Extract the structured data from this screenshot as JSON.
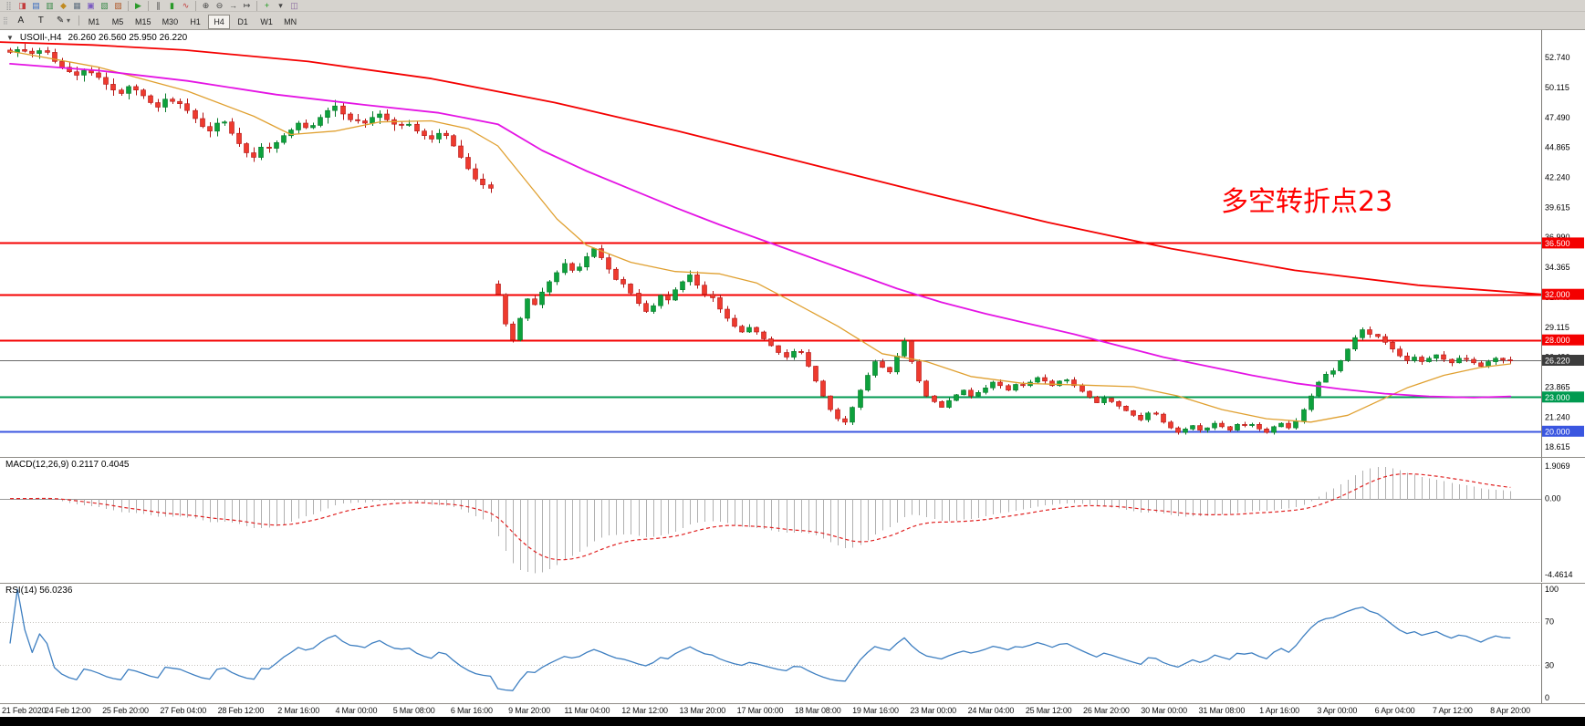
{
  "toolbar_row1": {
    "icons": [
      {
        "name": "drag-handle",
        "glyph": "⣿",
        "color": "#9a9a9a"
      },
      {
        "name": "new-order",
        "glyph": "◨",
        "color": "#c33b3b"
      },
      {
        "name": "market-watch",
        "glyph": "▤",
        "color": "#3a6cc0"
      },
      {
        "name": "data-window",
        "glyph": "▥",
        "color": "#3a8a4a"
      },
      {
        "name": "navigator",
        "glyph": "◆",
        "color": "#c08a20"
      },
      {
        "name": "terminal",
        "glyph": "▦",
        "color": "#607080"
      },
      {
        "name": "strategy-tester",
        "glyph": "▣",
        "color": "#7a5ac0"
      },
      {
        "name": "new-chart",
        "glyph": "▧",
        "color": "#3a8a4a"
      },
      {
        "name": "profiles",
        "glyph": "▨",
        "color": "#b05a2a"
      },
      {
        "name": "separator",
        "glyph": "",
        "color": ""
      },
      {
        "name": "autotrading",
        "glyph": "▶",
        "color": "#2a9a2a"
      },
      {
        "name": "separator",
        "glyph": "",
        "color": ""
      },
      {
        "name": "bar-chart",
        "glyph": "∥",
        "color": "#444444"
      },
      {
        "name": "candlestick-chart",
        "glyph": "▮",
        "color": "#2a9a2a"
      },
      {
        "name": "line-chart",
        "glyph": "∿",
        "color": "#c33b3b"
      },
      {
        "name": "separator",
        "glyph": "",
        "color": ""
      },
      {
        "name": "zoom-in",
        "glyph": "⊕",
        "color": "#444444"
      },
      {
        "name": "zoom-out",
        "glyph": "⊖",
        "color": "#444444"
      },
      {
        "name": "auto-scroll",
        "glyph": "→",
        "color": "#444444"
      },
      {
        "name": "chart-shift",
        "glyph": "↦",
        "color": "#444444"
      },
      {
        "name": "separator",
        "glyph": "",
        "color": ""
      },
      {
        "name": "indicators",
        "glyph": "+",
        "color": "#1a9a1a"
      },
      {
        "name": "periods-list",
        "glyph": "▾",
        "color": "#444444"
      },
      {
        "name": "templates",
        "glyph": "◫",
        "color": "#8a6aa0"
      }
    ]
  },
  "toolbar_row2": {
    "handle_glyph": "⣿",
    "text_tool": "A",
    "label_tool": "T",
    "draw_glyph": "✎",
    "arrow": "▾",
    "periods": [
      {
        "label": "M1",
        "active": false
      },
      {
        "label": "M5",
        "active": false
      },
      {
        "label": "M15",
        "active": false
      },
      {
        "label": "M30",
        "active": false
      },
      {
        "label": "H1",
        "active": false
      },
      {
        "label": "H4",
        "active": true
      },
      {
        "label": "D1",
        "active": false
      },
      {
        "label": "W1",
        "active": false
      },
      {
        "label": "MN",
        "active": false
      }
    ]
  },
  "chart_header": {
    "expander": "▼",
    "symbol_period": "USOIl-,H4",
    "ohlc": "26.260 26.560 25.950 26.220"
  },
  "annotation": {
    "text": "多空转折点23",
    "color": "#ff0000"
  },
  "panels": {
    "macd_label": "MACD(12,26,9) 0.2117 0.4045",
    "rsi_label": "RSI(14) 56.0236"
  },
  "chart_data": [
    {
      "type": "candlestick",
      "symbol": "USOIl-",
      "timeframe": "H4",
      "ohlc_current": {
        "open": "26.260",
        "high": "26.560",
        "low": "25.950",
        "close": "26.220"
      },
      "price_axis": {
        "max": 55.15,
        "min": 17.75,
        "labels": [
          "52.740",
          "50.115",
          "47.490",
          "44.865",
          "42.240",
          "39.615",
          "36.990",
          "34.365",
          "31.740",
          "29.115",
          "26.490",
          "23.865",
          "21.240",
          "18.615"
        ]
      },
      "time_labels": [
        "21 Feb 2020",
        "24 Feb 12:00",
        "25 Feb 20:00",
        "27 Feb 04:00",
        "28 Feb 12:00",
        "2 Mar 16:00",
        "4 Mar 00:00",
        "5 Mar 08:00",
        "6 Mar 16:00",
        "9 Mar 20:00",
        "11 Mar 04:00",
        "12 Mar 12:00",
        "13 Mar 20:00",
        "17 Mar 00:00",
        "18 Mar 08:00",
        "19 Mar 16:00",
        "23 Mar 00:00",
        "24 Mar 04:00",
        "25 Mar 12:00",
        "26 Mar 20:00",
        "30 Mar 00:00",
        "31 Mar 08:00",
        "1 Apr 16:00",
        "3 Apr 00:00",
        "6 Apr 04:00",
        "7 Apr 12:00",
        "8 Apr 20:00"
      ],
      "closes": [
        53.2,
        53.45,
        53.3,
        53.1,
        53.35,
        53.2,
        52.4,
        51.9,
        51.5,
        51.2,
        51.6,
        51.4,
        51.0,
        50.4,
        49.9,
        49.6,
        50.2,
        49.9,
        49.4,
        48.8,
        48.4,
        49.1,
        48.9,
        48.7,
        48.1,
        47.4,
        46.7,
        46.3,
        47.0,
        47.1,
        46.1,
        45.2,
        44.4,
        44.0,
        44.9,
        44.8,
        45.3,
        45.9,
        46.4,
        47.0,
        46.6,
        46.8,
        47.5,
        48.1,
        48.5,
        47.8,
        47.3,
        47.2,
        47.0,
        47.5,
        47.8,
        47.3,
        46.9,
        46.8,
        46.9,
        46.3,
        45.9,
        45.6,
        46.1,
        45.9,
        45.0,
        44.0,
        43.0,
        42.1,
        41.6,
        41.3,
        32.0,
        29.4,
        28.0,
        29.9,
        31.6,
        31.1,
        32.2,
        33.1,
        33.9,
        34.7,
        34.1,
        34.4,
        35.3,
        36.0,
        35.2,
        34.2,
        33.3,
        32.9,
        32.1,
        31.2,
        30.5,
        31.0,
        31.9,
        31.5,
        32.4,
        33.1,
        33.7,
        32.8,
        32.0,
        31.7,
        30.7,
        29.9,
        29.2,
        28.7,
        29.1,
        28.7,
        28.1,
        27.5,
        26.9,
        26.5,
        27.0,
        26.9,
        25.7,
        24.4,
        23.1,
        21.9,
        21.1,
        20.8,
        22.1,
        23.6,
        24.9,
        26.1,
        25.6,
        25.2,
        26.6,
        27.9,
        26.1,
        24.4,
        23.1,
        22.6,
        22.1,
        22.7,
        23.2,
        23.6,
        23.1,
        23.4,
        23.8,
        24.3,
        24.0,
        23.6,
        24.1,
        24.0,
        24.3,
        24.7,
        24.4,
        24.0,
        24.4,
        24.5,
        24.0,
        23.5,
        23.0,
        22.5,
        22.9,
        22.6,
        22.2,
        21.8,
        21.4,
        21.0,
        21.6,
        21.5,
        20.8,
        20.3,
        19.9,
        20.2,
        20.5,
        20.1,
        20.3,
        20.7,
        20.4,
        20.1,
        20.6,
        20.5,
        20.6,
        20.2,
        19.9,
        20.4,
        20.7,
        20.3,
        20.9,
        21.9,
        23.1,
        24.3,
        25.0,
        25.3,
        26.2,
        27.2,
        28.2,
        28.9,
        28.5,
        28.3,
        27.8,
        27.2,
        26.6,
        26.2,
        26.5,
        26.1,
        26.4,
        26.7,
        26.3,
        26.0,
        26.4,
        26.3,
        26.0,
        25.7,
        26.1,
        26.4,
        26.26,
        26.22
      ],
      "gap_opens": {
        "66": 32.9
      },
      "last_candle": [
        26.26,
        26.56,
        25.95,
        26.22
      ],
      "hlines": [
        {
          "price": 36.5,
          "label": "36.500",
          "color": "#f40000",
          "badge_color": "#f40000",
          "width": 1.6
        },
        {
          "price": 32.0,
          "label": "32.000",
          "color": "#f40000",
          "badge_color": "#f40000",
          "width": 1.6
        },
        {
          "price": 28.0,
          "label": "28.000",
          "color": "#f40000",
          "badge_color": "#f40000",
          "width": 1.6
        },
        {
          "price": 23.0,
          "label": "23.000",
          "color": "#009a50",
          "badge_color": "#009a50",
          "width": 1.6
        },
        {
          "price": 20.0,
          "label": "20.000",
          "color": "#3a56e0",
          "badge_color": "#3a56e0",
          "width": 2
        }
      ],
      "bid_line": {
        "price": 26.22,
        "label": "26.220",
        "color": "#6a6a6a",
        "badge_color": "#3c3c3c"
      },
      "ma_lines": [
        {
          "name": "ma-fast-orange",
          "color": "#e0a030",
          "width": 1.3,
          "points_idx": [
            [
              0,
              53.3
            ],
            [
              12,
              51.9
            ],
            [
              24,
              49.8
            ],
            [
              33,
              47.6
            ],
            [
              38,
              46.0
            ],
            [
              44,
              46.3
            ],
            [
              50,
              47.1
            ],
            [
              57,
              47.2
            ],
            [
              62,
              46.5
            ],
            [
              66,
              45.0
            ],
            [
              70,
              41.8
            ],
            [
              74,
              38.6
            ],
            [
              78,
              36.3
            ],
            [
              84,
              34.8
            ],
            [
              90,
              34.0
            ],
            [
              96,
              33.8
            ],
            [
              101,
              33.0
            ],
            [
              106,
              31.3
            ],
            [
              112,
              29.2
            ],
            [
              118,
              26.8
            ],
            [
              124,
              26.1
            ],
            [
              130,
              24.8
            ],
            [
              137,
              24.2
            ],
            [
              145,
              24.05
            ],
            [
              152,
              23.9
            ],
            [
              158,
              23.1
            ],
            [
              164,
              21.9
            ],
            [
              170,
              21.1
            ],
            [
              176,
              20.8
            ],
            [
              181,
              21.4
            ],
            [
              185,
              22.6
            ],
            [
              189,
              23.8
            ],
            [
              194,
              24.9
            ],
            [
              199,
              25.6
            ],
            [
              203,
              25.9
            ]
          ]
        },
        {
          "name": "ma-mid-magenta",
          "color": "#e414e4",
          "width": 1.8,
          "points_idx": [
            [
              0,
              52.2
            ],
            [
              12,
              51.6
            ],
            [
              24,
              50.7
            ],
            [
              36,
              49.5
            ],
            [
              48,
              48.6
            ],
            [
              58,
              47.9
            ],
            [
              66,
              46.9
            ],
            [
              72,
              44.6
            ],
            [
              78,
              42.8
            ],
            [
              84,
              41.2
            ],
            [
              90,
              39.6
            ],
            [
              96,
              38.1
            ],
            [
              102,
              36.7
            ],
            [
              108,
              35.3
            ],
            [
              114,
              33.9
            ],
            [
              120,
              32.5
            ],
            [
              126,
              31.3
            ],
            [
              132,
              30.3
            ],
            [
              138,
              29.4
            ],
            [
              144,
              28.5
            ],
            [
              150,
              27.5
            ],
            [
              156,
              26.5
            ],
            [
              162,
              25.7
            ],
            [
              168,
              24.9
            ],
            [
              174,
              24.2
            ],
            [
              180,
              23.7
            ],
            [
              186,
              23.3
            ],
            [
              192,
              23.05
            ],
            [
              198,
              22.95
            ],
            [
              203,
              23.05
            ]
          ]
        },
        {
          "name": "ma-slow-red",
          "color": "#f40000",
          "width": 1.8,
          "points_frac": [
            [
              0,
              54.1
            ],
            [
              0.06,
              53.85
            ],
            [
              0.12,
              53.4
            ],
            [
              0.2,
              52.4
            ],
            [
              0.28,
              50.9
            ],
            [
              0.36,
              48.8
            ],
            [
              0.44,
              46.3
            ],
            [
              0.52,
              43.6
            ],
            [
              0.6,
              40.9
            ],
            [
              0.68,
              38.3
            ],
            [
              0.76,
              36.0
            ],
            [
              0.84,
              34.1
            ],
            [
              0.92,
              32.8
            ],
            [
              1.0,
              32.0
            ]
          ]
        }
      ],
      "colors": {
        "up": "#0da13c",
        "up_stroke": "#067a28",
        "down": "#ee3a2e",
        "down_stroke": "#b31414"
      }
    },
    {
      "type": "macd-histogram",
      "title": "MACD(12,26,9)",
      "values": {
        "macd": "0.2117",
        "signal": "0.4045"
      },
      "fast": 12,
      "slow": 26,
      "signal": 9,
      "range": {
        "max": 2.4,
        "min": -4.9
      },
      "histogram_color": "#b0b0b0",
      "signal_color": "#e02020",
      "axis": [
        {
          "v": 1.9069,
          "label": "1.9069"
        },
        {
          "v": 0,
          "label": "0.00"
        },
        {
          "v": -4.4614,
          "label": "-4.4614"
        }
      ]
    },
    {
      "type": "rsi-line",
      "title": "RSI(14)",
      "value": "56.0236",
      "period": 14,
      "color": "#3e7fc1",
      "levels": [
        70,
        30
      ],
      "axis": [
        {
          "v": 100,
          "label": "100"
        },
        {
          "v": 70,
          "label": "70"
        },
        {
          "v": 30,
          "label": "30"
        },
        {
          "v": 0,
          "label": "0"
        }
      ]
    }
  ]
}
